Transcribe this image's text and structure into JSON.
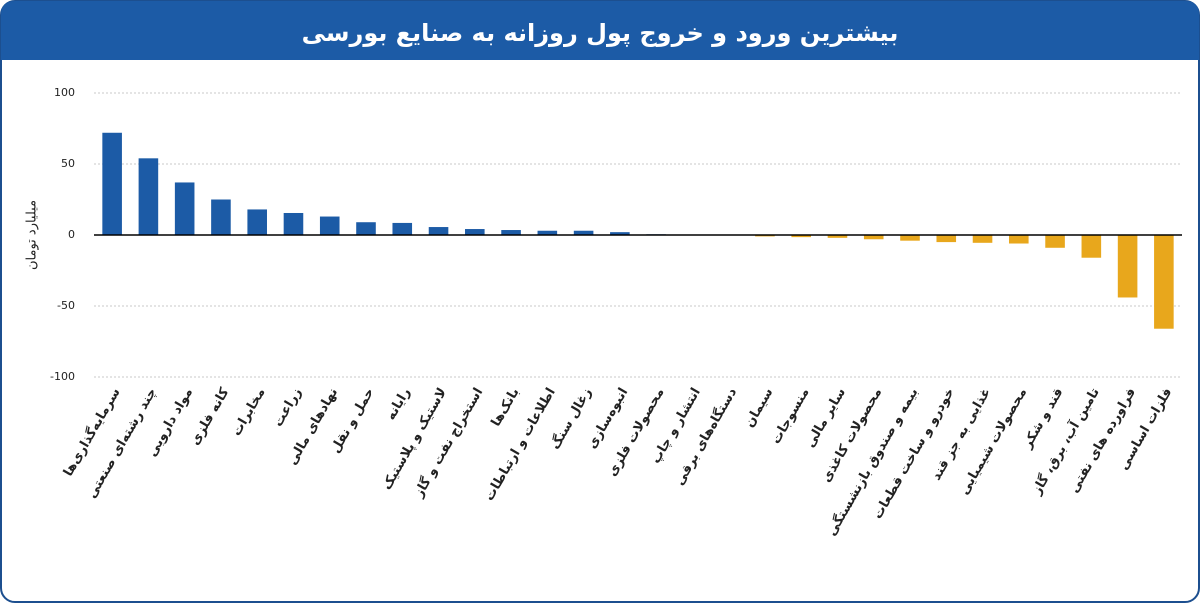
{
  "chart_data": {
    "type": "bar",
    "title": "بیشترین ورود و خروج پول روزانه به صنایع بورسی",
    "ylabel": "میلیارد تومان",
    "categories": [
      "سرمایه‌گذاری‌ها",
      "چند رشته‌ای صنعتی",
      "مواد دارویی",
      "کانه فلزی",
      "مخابرات",
      "زراعت",
      "نهادهای مالی",
      "حمل و نقل",
      "رایانه",
      "لاستیک و پلاستیک",
      "استخراج نفت و گاز",
      "بانک‌ها",
      "اطلاعات و ارتباطات",
      "زغال سنگ",
      "انبوه‌سازی",
      "محصولات فلزی",
      "انتشار و چاپ",
      "دستگاه‌های برقی",
      "سیمان",
      "منسوجات",
      "سایر مالی",
      "محصولات کاغذی",
      "بیمه و صندوق بازنشستگی",
      "خودرو و ساخت قطعات",
      "غذایی به جز قند",
      "محصولات شیمیایی",
      "قند و شکر",
      "تامین آب، برق، گاز",
      "فراورده های نفتی",
      "فلزات اساسی"
    ],
    "values": [
      72,
      54,
      37,
      25,
      18,
      15.5,
      13,
      9,
      8.5,
      5.6,
      4.2,
      3.5,
      3,
      3,
      2,
      0.5,
      0.3,
      -0.3,
      -1,
      -1.5,
      -2,
      -3,
      -4,
      -5,
      -5.5,
      -6,
      -9,
      -16,
      -44,
      -66
    ],
    "color": "#1c5ba6",
    "negative_color": "#e8a71c",
    "ylim": [
      -100,
      100
    ],
    "yticks": [
      100,
      50,
      0,
      -50,
      -100
    ],
    "grid": true
  }
}
